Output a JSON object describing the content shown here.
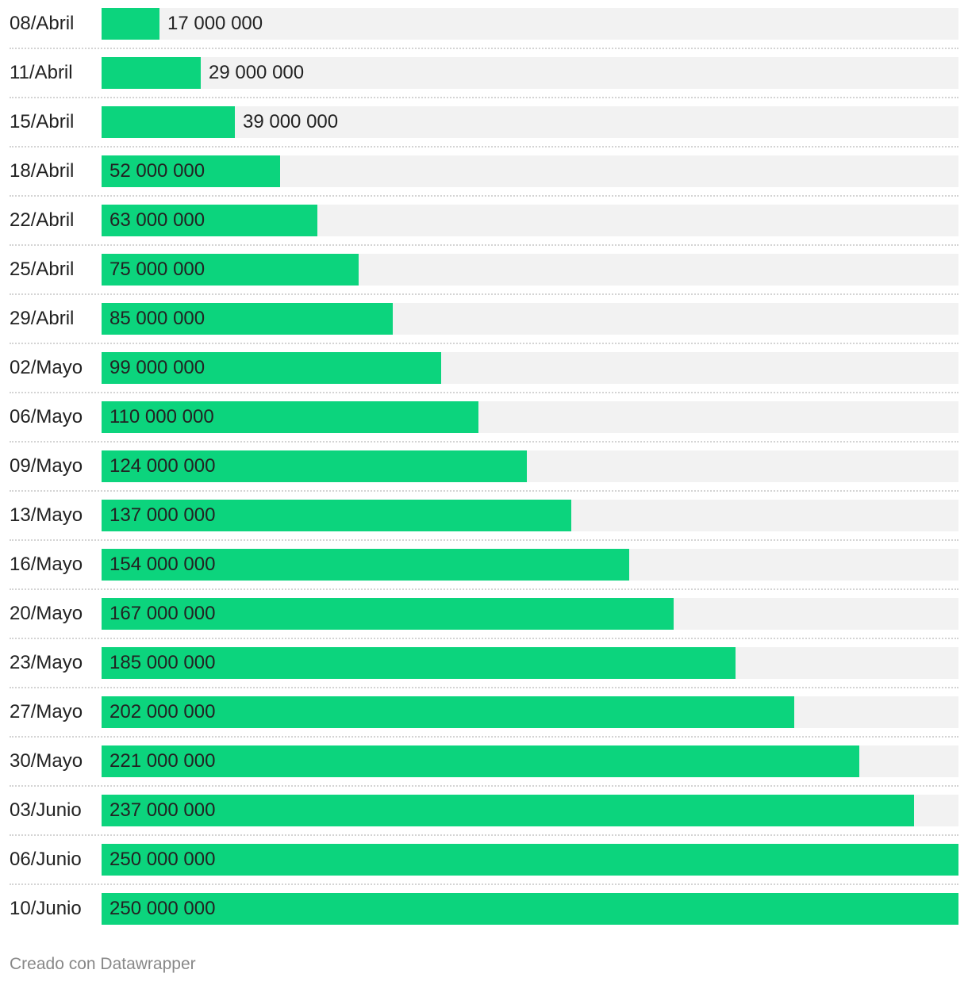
{
  "chart_data": {
    "type": "bar",
    "orientation": "horizontal",
    "categories": [
      "08/Abril",
      "11/Abril",
      "15/Abril",
      "18/Abril",
      "22/Abril",
      "25/Abril",
      "29/Abril",
      "02/Mayo",
      "06/Mayo",
      "09/Mayo",
      "13/Mayo",
      "16/Mayo",
      "20/Mayo",
      "23/Mayo",
      "27/Mayo",
      "30/Mayo",
      "03/Junio",
      "06/Junio",
      "10/Junio"
    ],
    "values": [
      17000000,
      29000000,
      39000000,
      52000000,
      63000000,
      75000000,
      85000000,
      99000000,
      110000000,
      124000000,
      137000000,
      154000000,
      167000000,
      185000000,
      202000000,
      221000000,
      237000000,
      250000000,
      250000000
    ],
    "value_labels": [
      "17 000 000",
      "29 000 000",
      "39 000 000",
      "52 000 000",
      "63 000 000",
      "75 000 000",
      "85 000 000",
      "99 000 000",
      "110 000 000",
      "124 000 000",
      "137 000 000",
      "154 000 000",
      "167 000 000",
      "185 000 000",
      "202 000 000",
      "221 000 000",
      "237 000 000",
      "250 000 000",
      "250 000 000"
    ],
    "xlim": [
      0,
      250000000
    ],
    "grid": false,
    "legend": "none",
    "colors": {
      "bar": "#0cd47d",
      "track": "#f2f2f2",
      "divider": "#d4d4d4"
    }
  },
  "footer": {
    "credit": "Creado con Datawrapper"
  }
}
